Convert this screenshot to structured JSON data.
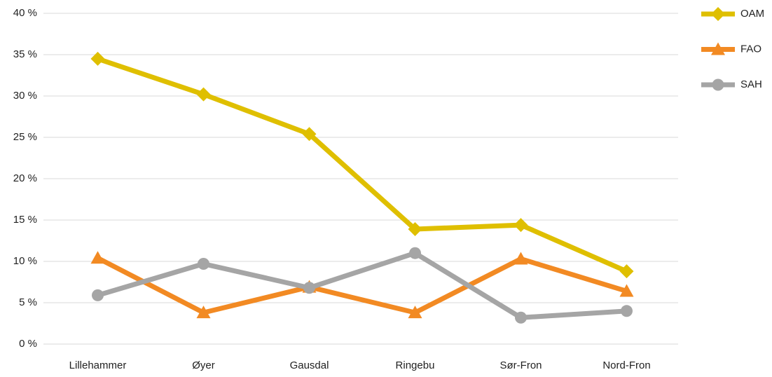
{
  "chart_data": {
    "type": "line",
    "categories": [
      "Lillehammer",
      "Øyer",
      "Gausdal",
      "Ringebu",
      "Sør-Fron",
      "Nord-Fron"
    ],
    "series": [
      {
        "name": "OAM",
        "color": "#dfbf00",
        "marker": "diamond",
        "values": [
          34.5,
          30.2,
          25.4,
          13.9,
          14.4,
          8.8
        ]
      },
      {
        "name": "FAO",
        "color": "#f28a23",
        "marker": "triangle",
        "values": [
          10.4,
          3.8,
          6.9,
          3.8,
          10.3,
          6.4
        ]
      },
      {
        "name": "SAH",
        "color": "#a5a5a5",
        "marker": "circle",
        "values": [
          5.9,
          9.7,
          6.8,
          11.0,
          3.2,
          4.0
        ]
      }
    ],
    "ylim": [
      0,
      40
    ],
    "yticks": [
      {
        "value": 0,
        "label": "0 %"
      },
      {
        "value": 5,
        "label": "5 %"
      },
      {
        "value": 10,
        "label": "10 %"
      },
      {
        "value": 15,
        "label": "15 %"
      },
      {
        "value": 20,
        "label": "20 %"
      },
      {
        "value": 25,
        "label": "25 %"
      },
      {
        "value": 30,
        "label": "30 %"
      },
      {
        "value": 35,
        "label": "35 %"
      },
      {
        "value": 40,
        "label": "40 %"
      }
    ],
    "grid": true,
    "legend": "right"
  }
}
